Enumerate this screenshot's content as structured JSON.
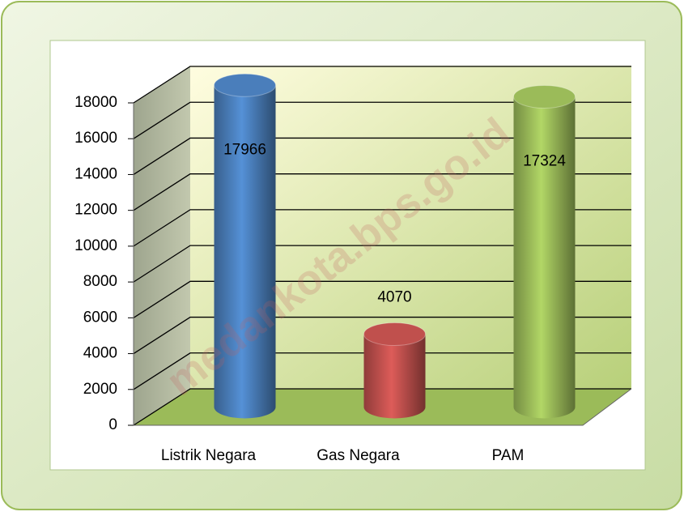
{
  "chart_data": {
    "type": "bar3d",
    "categories": [
      "Listrik Negara",
      "Gas Negara",
      "PAM"
    ],
    "values": [
      17966,
      4070,
      17324
    ],
    "colors": [
      "#4a7ebb",
      "#c0504d",
      "#9bbb59"
    ],
    "ylim": [
      0,
      18000
    ],
    "yticks": [
      0,
      2000,
      4000,
      6000,
      8000,
      10000,
      12000,
      14000,
      16000,
      18000
    ],
    "grid": true,
    "watermark": "medankota.bps.go.id"
  }
}
